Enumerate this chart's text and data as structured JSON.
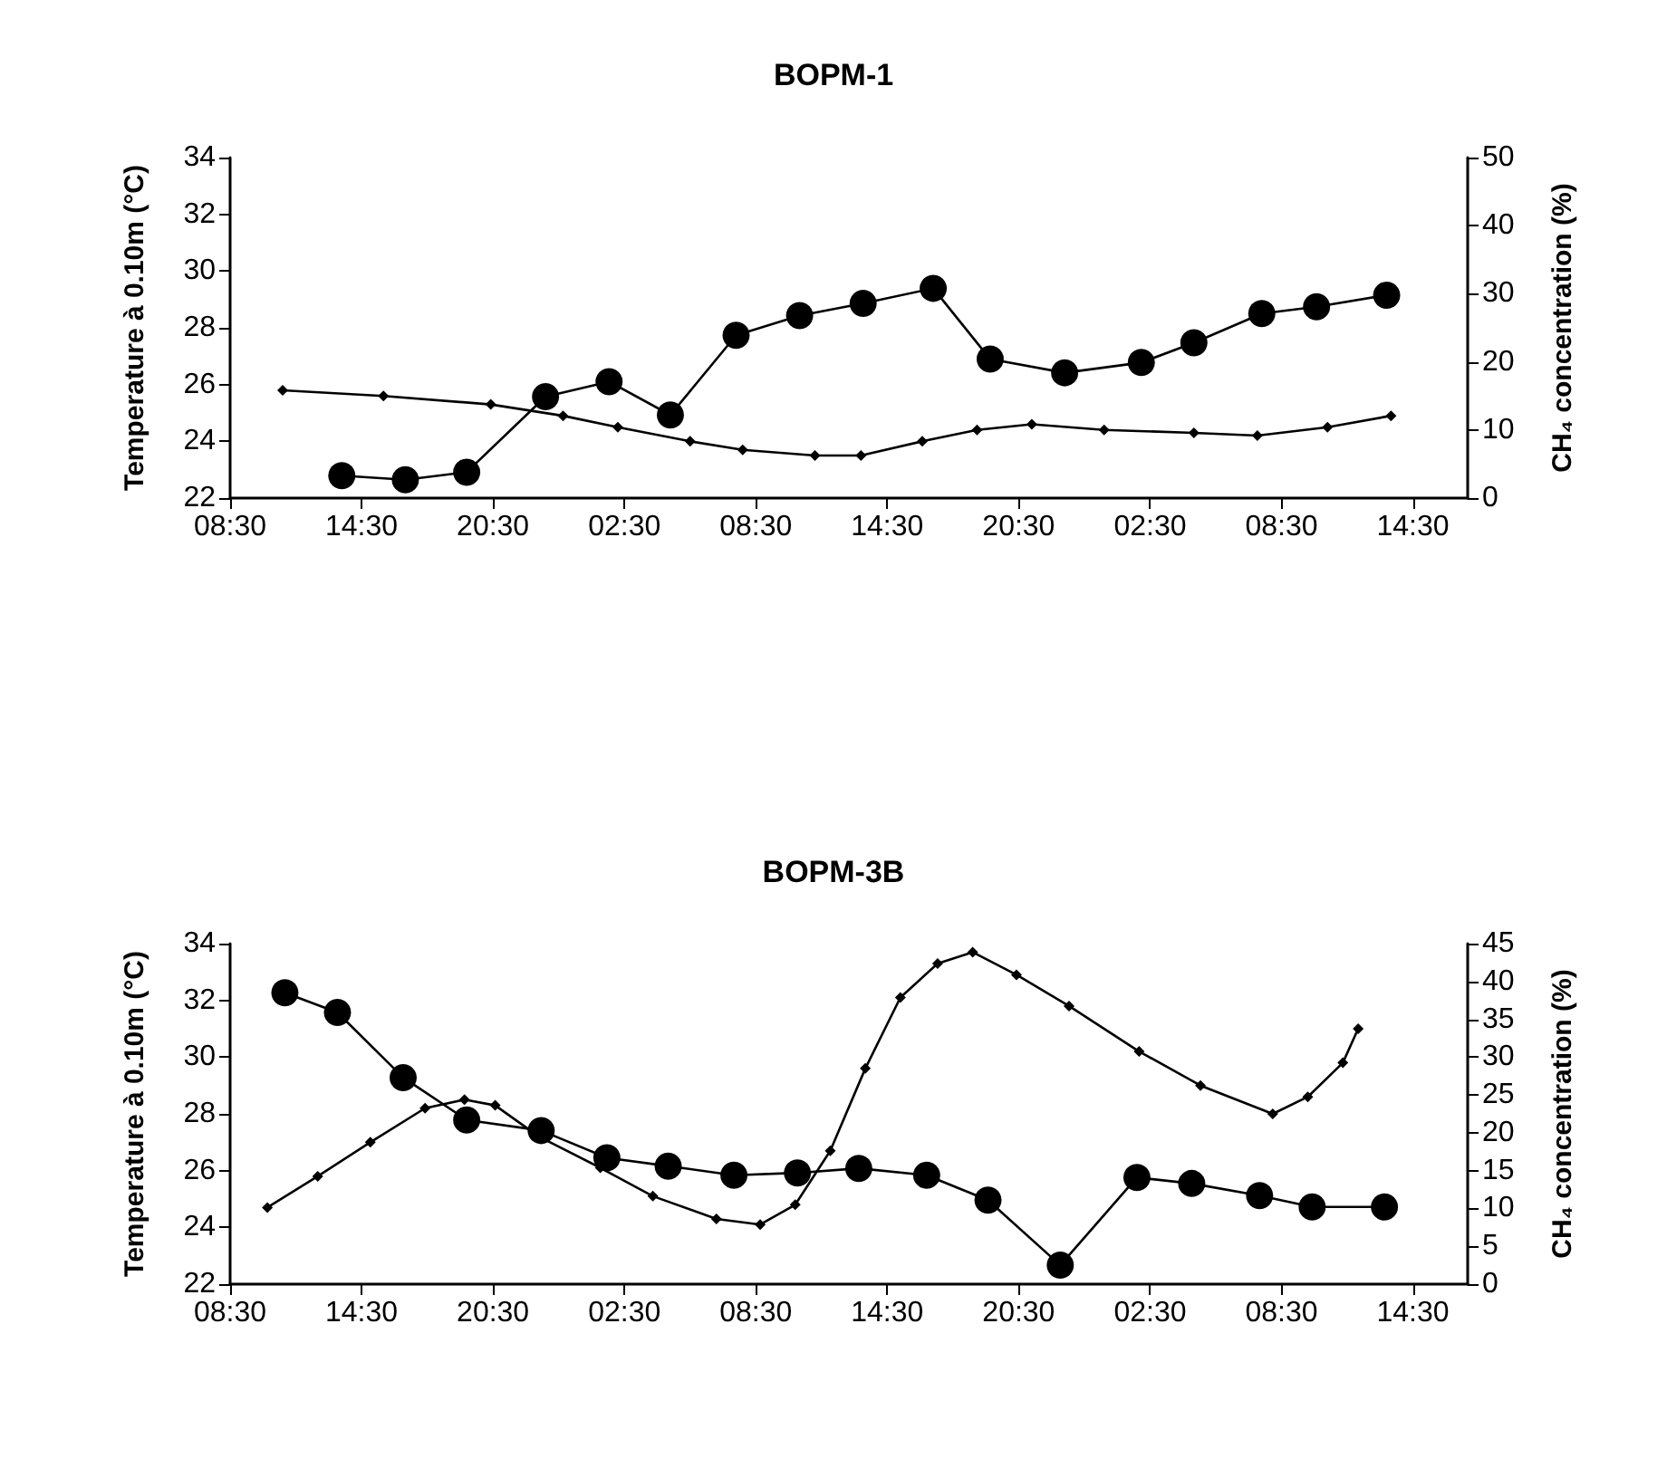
{
  "chart_data": [
    {
      "type": "line",
      "title": "BOPM-1",
      "ylabel": "Temperature à 0.10m (°C)",
      "y2label": "CH₄ concentration (%)",
      "xlim": [
        "--01-01T08:30",
        "--01-03T17:00"
      ],
      "xticks": [
        {
          "value": "--01-01T08:30",
          "label": "08:30"
        },
        {
          "value": "--01-01T14:30",
          "label": "14:30"
        },
        {
          "value": "--01-01T20:30",
          "label": "20:30"
        },
        {
          "value": "--01-02T02:30",
          "label": "02:30"
        },
        {
          "value": "--01-02T08:30",
          "label": "08:30"
        },
        {
          "value": "--01-02T14:30",
          "label": "14:30"
        },
        {
          "value": "--01-02T20:30",
          "label": "20:30"
        },
        {
          "value": "--01-03T02:30",
          "label": "02:30"
        },
        {
          "value": "--01-03T08:30",
          "label": "08:30"
        },
        {
          "value": "--01-03T14:30",
          "label": "14:30"
        }
      ],
      "ylim": [
        22,
        34
      ],
      "yticks": [
        22,
        24,
        26,
        28,
        30,
        32,
        34
      ],
      "y2lim": [
        0,
        50
      ],
      "y2ticks": [
        0,
        10,
        20,
        30,
        40,
        50
      ],
      "grid": false,
      "series": [
        {
          "color": "#000000",
          "marker": "diamond",
          "x": [
            "--01-01T10:54",
            "--01-01T15:30",
            "--01-01T20:24",
            "--01-01T23:42",
            "--01-02T02:12",
            "--01-02T05:30",
            "--01-02T07:54",
            "--01-02T11:12",
            "--01-02T13:18",
            "--01-02T16:06",
            "--01-02T18:36",
            "--01-02T21:06",
            "--01-03T00:24",
            "--01-03T04:30",
            "--01-03T07:24",
            "--01-03T10:36",
            "--01-03T13:30"
          ],
          "values": [
            25.8,
            25.6,
            25.3,
            24.9,
            24.5,
            24.0,
            23.7,
            23.5,
            23.5,
            24.0,
            24.4,
            24.6,
            24.4,
            24.3,
            24.2,
            24.5,
            24.9
          ]
        },
        {
          "color": "#000000",
          "marker": "circle",
          "axis": "y2",
          "x": [
            "--01-01T13:36",
            "--01-01T16:30",
            "--01-01T19:18",
            "--01-01T22:54",
            "--01-02T01:48",
            "--01-02T04:36",
            "--01-02T07:36",
            "--01-02T10:30",
            "--01-02T13:24",
            "--01-02T16:36",
            "--01-02T19:12",
            "--01-02T22:36",
            "--01-03T02:06",
            "--01-03T04:30",
            "--01-03T07:36",
            "--01-03T10:06",
            "--01-03T13:18"
          ],
          "values": [
            3.3,
            2.7,
            3.8,
            14.9,
            17.1,
            12.2,
            23.9,
            26.8,
            28.6,
            30.8,
            20.4,
            18.4,
            19.9,
            22.8,
            27.1,
            28.1,
            29.8
          ]
        }
      ]
    },
    {
      "type": "line",
      "title": "BOPM-3B",
      "ylabel": "Temperature à 0.10m (°C)",
      "y2label": "CH₄ concentration (%)",
      "xlim": [
        "--01-01T08:30",
        "--01-03T17:00"
      ],
      "xticks": [
        {
          "value": "--01-01T08:30",
          "label": "08:30"
        },
        {
          "value": "--01-01T14:30",
          "label": "14:30"
        },
        {
          "value": "--01-01T20:30",
          "label": "20:30"
        },
        {
          "value": "--01-02T02:30",
          "label": "02:30"
        },
        {
          "value": "--01-02T08:30",
          "label": "08:30"
        },
        {
          "value": "--01-02T14:30",
          "label": "14:30"
        },
        {
          "value": "--01-02T20:30",
          "label": "20:30"
        },
        {
          "value": "--01-03T02:30",
          "label": "02:30"
        },
        {
          "value": "--01-03T08:30",
          "label": "08:30"
        },
        {
          "value": "--01-03T14:30",
          "label": "14:30"
        }
      ],
      "ylim": [
        22,
        34
      ],
      "yticks": [
        22,
        24,
        26,
        28,
        30,
        32,
        34
      ],
      "y2lim": [
        0,
        45
      ],
      "y2ticks": [
        0,
        5,
        10,
        15,
        20,
        25,
        30,
        35,
        40,
        45
      ],
      "grid": false,
      "series": [
        {
          "color": "#000000",
          "marker": "diamond",
          "x": [
            "--01-01T10:12",
            "--01-01T12:30",
            "--01-01T14:54",
            "--01-01T17:24",
            "--01-01T19:12",
            "--01-01T20:36",
            "--01-01T22:36",
            "--01-02T01:24",
            "--01-02T03:48",
            "--01-02T06:42",
            "--01-02T08:42",
            "--01-02T10:18",
            "--01-02T11:54",
            "--01-02T13:30",
            "--01-02T15:06",
            "--01-02T16:48",
            "--01-02T18:24",
            "--01-02T20:24",
            "--01-02T22:48",
            "--01-03T02:00",
            "--01-03T04:48",
            "--01-03T08:06",
            "--01-03T09:42",
            "--01-03T11:18",
            "--01-03T12:00"
          ],
          "values": [
            24.7,
            25.8,
            27.0,
            28.2,
            28.5,
            28.3,
            27.2,
            26.1,
            25.1,
            24.3,
            24.1,
            24.8,
            26.7,
            29.6,
            32.1,
            33.3,
            33.7,
            32.9,
            31.8,
            30.2,
            29.0,
            28.0,
            28.6,
            29.8,
            31.0
          ]
        },
        {
          "color": "#000000",
          "marker": "circle",
          "axis": "y2",
          "x": [
            "--01-01T11:00",
            "--01-01T13:24",
            "--01-01T16:24",
            "--01-01T19:18",
            "--01-01T22:42",
            "--01-02T01:42",
            "--01-02T04:30",
            "--01-02T07:30",
            "--01-02T10:24",
            "--01-02T13:12",
            "--01-02T16:18",
            "--01-02T19:06",
            "--01-02T22:24",
            "--01-03T01:54",
            "--01-03T04:24",
            "--01-03T07:30",
            "--01-03T09:54",
            "--01-03T13:12"
          ],
          "values": [
            38.5,
            35.9,
            27.3,
            21.7,
            20.3,
            16.7,
            15.6,
            14.4,
            14.7,
            15.3,
            14.4,
            11.1,
            2.5,
            14.1,
            13.3,
            11.7,
            10.2,
            10.2
          ]
        }
      ]
    }
  ]
}
